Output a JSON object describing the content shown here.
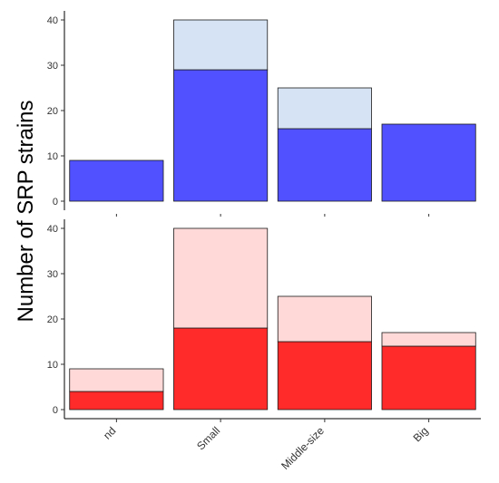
{
  "chart_data": [
    {
      "type": "bar",
      "stacked": true,
      "panel": "top",
      "categories": [
        "nd",
        "Small",
        "Middle-size",
        "Big"
      ],
      "series": [
        {
          "values": [
            9,
            29,
            16,
            17
          ],
          "color": "#5151ff"
        },
        {
          "values": [
            0,
            11,
            9,
            0
          ],
          "color": "#d6e3f4"
        }
      ],
      "totals": [
        9,
        40,
        25,
        17
      ],
      "ylim": [
        -2,
        42
      ],
      "yticks": [
        0,
        10,
        20,
        30,
        40
      ],
      "grid": false
    },
    {
      "type": "bar",
      "stacked": true,
      "panel": "bottom",
      "categories": [
        "nd",
        "Small",
        "Middle-size",
        "Big"
      ],
      "series": [
        {
          "values": [
            4,
            18,
            15,
            14
          ],
          "color": "#ff2a2a"
        },
        {
          "values": [
            5,
            22,
            10,
            3
          ],
          "color": "#ffd8d8"
        }
      ],
      "totals": [
        9,
        40,
        25,
        17
      ],
      "ylim": [
        -2,
        42
      ],
      "yticks": [
        0,
        10,
        20,
        30,
        40
      ],
      "grid": false
    }
  ],
  "ylabel": "Number of SRP strains",
  "x_tick_labels": [
    "nd",
    "Small",
    "Middle-size",
    "Big"
  ],
  "y_tick_labels": [
    "0",
    "10",
    "20",
    "30",
    "40"
  ]
}
